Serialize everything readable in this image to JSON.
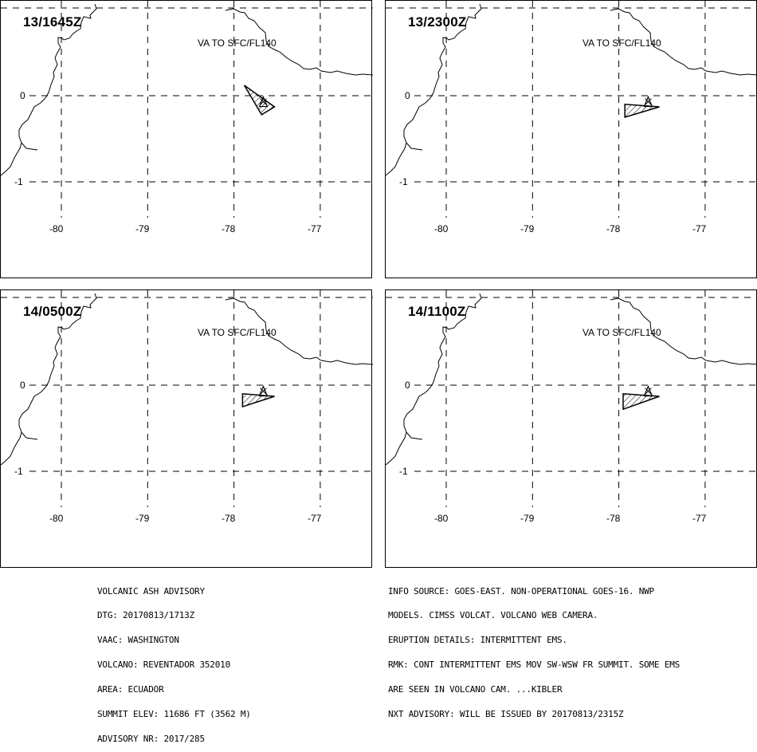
{
  "panels": [
    {
      "timestamp": "13/1645Z",
      "va_label": "VA TO SFC/FL140",
      "ash_polygon": [
        [
          -77.88,
          0.12
        ],
        [
          -77.68,
          -0.22
        ],
        [
          -77.53,
          -0.13
        ]
      ]
    },
    {
      "timestamp": "13/2300Z",
      "va_label": "VA TO SFC/FL140",
      "ash_polygon": [
        [
          -77.93,
          -0.1
        ],
        [
          -77.93,
          -0.25
        ],
        [
          -77.53,
          -0.13
        ]
      ]
    },
    {
      "timestamp": "14/0500Z",
      "va_label": "VA TO SFC/FL140",
      "ash_polygon": [
        [
          -77.9,
          -0.1
        ],
        [
          -77.9,
          -0.25
        ],
        [
          -77.53,
          -0.13
        ]
      ]
    },
    {
      "timestamp": "14/1100Z",
      "va_label": "VA TO SFC/FL140",
      "ash_polygon": [
        [
          -77.95,
          -0.1
        ],
        [
          -77.95,
          -0.28
        ],
        [
          -77.53,
          -0.13
        ]
      ]
    }
  ],
  "map": {
    "lat_labels": [
      "0",
      "-1"
    ],
    "lon_labels": [
      "-80",
      "-79",
      "-78",
      "-77"
    ],
    "lats": [
      0,
      -1
    ],
    "lons": [
      -80,
      -79,
      -78,
      -77
    ]
  },
  "advisory_left": [
    "VOLCANIC ASH ADVISORY",
    "DTG: 20170813/1713Z",
    "VAAC: WASHINGTON",
    "VOLCANO: REVENTADOR 352010",
    "AREA: ECUADOR",
    "SUMMIT ELEV: 11686 FT (3562 M)",
    "ADVISORY NR: 2017/285"
  ],
  "advisory_right": [
    "INFO SOURCE: GOES-EAST. NON-OPERATIONAL GOES-16. NWP",
    "MODELS. CIMSS VOLCAT. VOLCANO WEB CAMERA.",
    "ERUPTION DETAILS: INTERMITTENT EMS.",
    "RMK: CONT INTERMITTENT EMS MOV SW-WSW FR SUMMIT. SOME EMS",
    "ARE SEEN IN VOLCANO CAM. ...KIBLER",
    "NXT ADVISORY: WILL BE ISSUED BY 20170813/2315Z"
  ]
}
